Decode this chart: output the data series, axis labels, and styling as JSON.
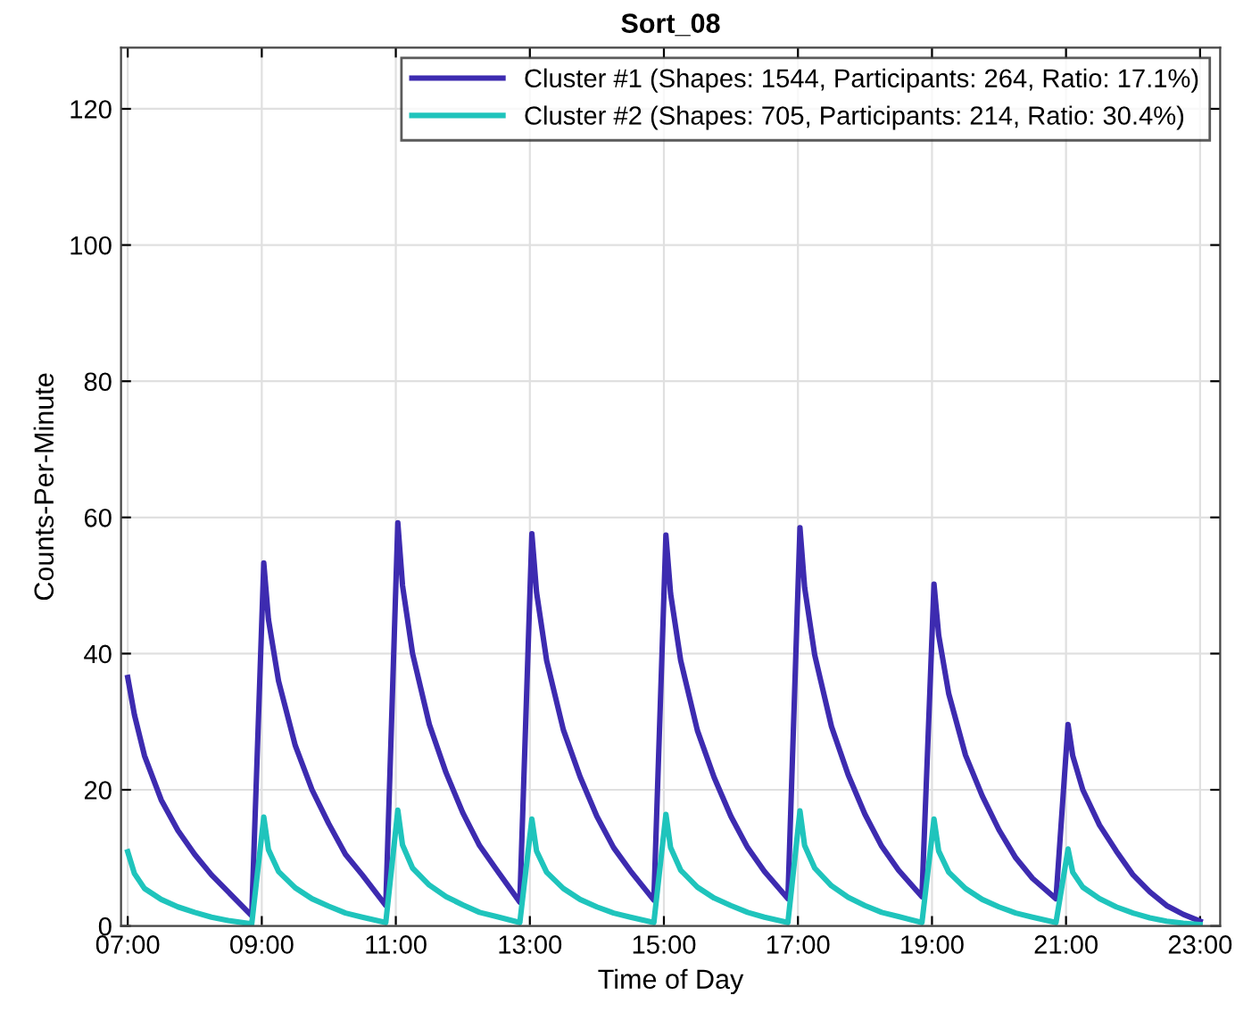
{
  "chart_data": {
    "type": "line",
    "title": "Sort_08",
    "xlabel": "Time of Day",
    "ylabel": "Counts-Per-Minute",
    "x": [
      7.0,
      7.1,
      7.25,
      7.5,
      7.75,
      8.0,
      8.25,
      8.5,
      8.85,
      9.03,
      9.1,
      9.25,
      9.5,
      9.75,
      10.0,
      10.25,
      10.5,
      10.85,
      11.03,
      11.1,
      11.25,
      11.5,
      11.75,
      12.0,
      12.25,
      12.5,
      12.85,
      13.03,
      13.1,
      13.25,
      13.5,
      13.75,
      14.0,
      14.25,
      14.5,
      14.85,
      15.03,
      15.1,
      15.25,
      15.5,
      15.75,
      16.0,
      16.25,
      16.5,
      16.85,
      17.03,
      17.1,
      17.25,
      17.5,
      17.75,
      18.0,
      18.25,
      18.5,
      18.85,
      19.03,
      19.1,
      19.25,
      19.5,
      19.75,
      20.0,
      20.25,
      20.5,
      20.85,
      21.03,
      21.1,
      21.25,
      21.5,
      21.75,
      22.0,
      22.25,
      22.5,
      22.75,
      23.0
    ],
    "series": [
      {
        "name": "Cluster #1 (Shapes: 1544, Participants: 264, Ratio: 17.1%)",
        "color": "#3d2bb0",
        "values": [
          36.5,
          31,
          25,
          18.5,
          14,
          10.5,
          7.5,
          5,
          1.5,
          53.3,
          45,
          36,
          26.5,
          20,
          15,
          10.5,
          7.5,
          3,
          59.2,
          50,
          40,
          29.6,
          22.5,
          16.6,
          11.8,
          8.3,
          3.5,
          57.6,
          49,
          39,
          28.8,
          21.9,
          16.1,
          11.5,
          8.1,
          3.8,
          57.4,
          48.8,
          39,
          28.7,
          21.8,
          16.1,
          11.5,
          8,
          4,
          58.5,
          49.7,
          39.8,
          29.3,
          22.2,
          16.4,
          11.7,
          8.2,
          4.3,
          50.2,
          42.7,
          34.1,
          25.1,
          19.1,
          14.1,
          10,
          7,
          4,
          29.6,
          25,
          20,
          14.8,
          11,
          7.5,
          5,
          3,
          1.7,
          0.7
        ]
      },
      {
        "name": "Cluster #2 (Shapes: 705, Participants: 214, Ratio: 30.4%)",
        "color": "#1fc4bc",
        "values": [
          10.9,
          7.7,
          5.5,
          3.9,
          2.8,
          2,
          1.3,
          0.8,
          0.3,
          16,
          11.2,
          8,
          5.6,
          4,
          2.9,
          1.9,
          1.3,
          0.5,
          17,
          11.9,
          8.5,
          6,
          4.3,
          3.1,
          2,
          1.4,
          0.5,
          15.7,
          11,
          7.9,
          5.5,
          3.9,
          2.8,
          1.9,
          1.3,
          0.5,
          16.4,
          11.5,
          8.2,
          5.7,
          4.1,
          3,
          2,
          1.3,
          0.5,
          16.9,
          11.8,
          8.5,
          5.9,
          4.2,
          3,
          2,
          1.4,
          0.5,
          15.7,
          11,
          7.9,
          5.5,
          3.9,
          2.8,
          1.9,
          1.3,
          0.5,
          11.3,
          7.9,
          5.7,
          4,
          2.8,
          1.9,
          1.2,
          0.7,
          0.4,
          0.2
        ]
      }
    ],
    "xlim": [
      6.9,
      23.3
    ],
    "ylim": [
      0,
      129
    ],
    "xticks": [
      {
        "value": 7,
        "label": "07:00"
      },
      {
        "value": 9,
        "label": "09:00"
      },
      {
        "value": 11,
        "label": "11:00"
      },
      {
        "value": 13,
        "label": "13:00"
      },
      {
        "value": 15,
        "label": "15:00"
      },
      {
        "value": 17,
        "label": "17:00"
      },
      {
        "value": 19,
        "label": "19:00"
      },
      {
        "value": 21,
        "label": "21:00"
      },
      {
        "value": 23,
        "label": "23:00"
      }
    ],
    "yticks": [
      0,
      20,
      40,
      60,
      80,
      100,
      120
    ],
    "grid": true,
    "legend": "top right",
    "line_style": "solid",
    "marker": "none"
  }
}
